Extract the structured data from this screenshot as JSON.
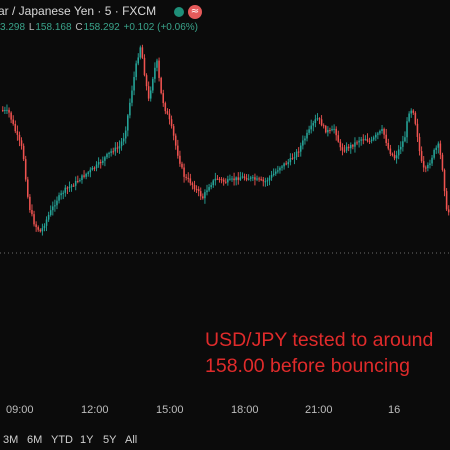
{
  "header": {
    "title": "ar / Japanese Yen · 5 · FXCM",
    "status_icon": "market-open-dot",
    "wave_icon": "wave-icon",
    "wave_symbol": "≈"
  },
  "ohlc": {
    "high_value": "3.298",
    "low_label": "L",
    "low_value": "158.168",
    "close_label": "C",
    "close_value": "158.292",
    "change": "+0.102 (+0.06%)"
  },
  "annotation": {
    "line1": "USD/JPY tested to around",
    "line2": "158.00 before bouncing"
  },
  "x_axis": [
    "09:00",
    "12:00",
    "15:00",
    "18:00",
    "21:00",
    "16"
  ],
  "ranges": [
    "3M",
    "6M",
    "YTD",
    "1Y",
    "5Y",
    "All"
  ],
  "colors": {
    "background": "#0b0b0b",
    "up": "#26a69a",
    "down": "#ef5350",
    "annotation": "#e02b2b"
  },
  "chart_data": {
    "type": "candlestick",
    "dotted_reference_line": true,
    "candle_count": 215
  }
}
